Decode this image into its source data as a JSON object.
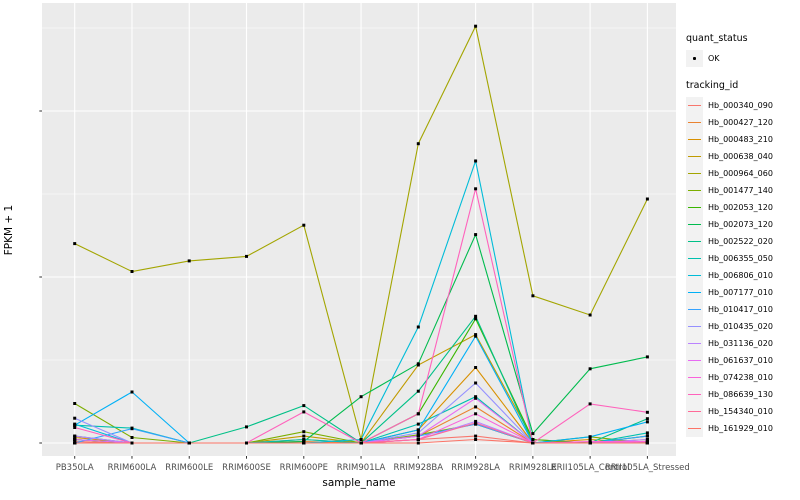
{
  "legend": {
    "quant_status_title": "quant_status",
    "ok_label": "OK",
    "tracking_id_title": "tracking_id"
  },
  "style": {
    "panel_bg": "#EBEBEB",
    "grid_color": "#FFFFFF",
    "legend_key_bg": "#F2F2F2",
    "tick_label_color": "#4D4D4D",
    "marker_color": "#000000",
    "axis_tick_color": "#333333"
  },
  "chart_data": {
    "type": "line",
    "title": "",
    "xlabel": "sample_name",
    "ylabel": "FPKM + 1",
    "y_scale": "log10",
    "y_ticks": [
      "1",
      "10",
      "100"
    ],
    "y_tick_values": [
      1,
      10,
      100
    ],
    "y_minor_gridlines": [
      3.1623,
      31.623,
      316.23
    ],
    "ylim": [
      0.84,
      450
    ],
    "grid": "on",
    "legend_position": "right",
    "point_legend": {
      "title": "quant_status",
      "label": "OK",
      "shape": "small-black-point"
    },
    "categories": [
      "PB350LA",
      "RRIM600LA",
      "RRIM600LE",
      "RRIM600SE",
      "RRIM600PE",
      "RRIM901LA",
      "RRIM928BA",
      "RRIM928LA",
      "RRIM928LE",
      "RRII105LA_Control",
      "RRII105LA_Stressed"
    ],
    "series": [
      {
        "name": "Hb_000340_090",
        "color": "#F8766D",
        "values": [
          1.02,
          1.0,
          1.0,
          1.0,
          1.0,
          1.0,
          1.05,
          1.1,
          1.0,
          1.0,
          1.0
        ]
      },
      {
        "name": "Hb_000427_120",
        "color": "#EA8331",
        "values": [
          1.05,
          1.0,
          1.0,
          1.0,
          1.02,
          1.0,
          1.1,
          1.65,
          1.0,
          1.0,
          1.02
        ]
      },
      {
        "name": "Hb_000483_210",
        "color": "#D89000",
        "values": [
          1.08,
          1.0,
          1.0,
          1.0,
          1.05,
          1.0,
          1.2,
          2.85,
          1.0,
          1.05,
          1.0
        ]
      },
      {
        "name": "Hb_000638_040",
        "color": "#C09B00",
        "values": [
          1.05,
          1.0,
          1.0,
          1.0,
          1.1,
          1.0,
          2.95,
          4.5,
          1.05,
          1.0,
          1.05
        ]
      },
      {
        "name": "Hb_000964_060",
        "color": "#A3A500",
        "values": [
          15.9,
          10.8,
          12.5,
          13.3,
          20.5,
          1.05,
          63.5,
          324.0,
          7.7,
          5.9,
          29.5
        ]
      },
      {
        "name": "Hb_001477_140",
        "color": "#7CAE00",
        "values": [
          1.73,
          1.08,
          1.0,
          1.0,
          1.17,
          1.0,
          1.12,
          1.3,
          1.0,
          1.09,
          1.0
        ]
      },
      {
        "name": "Hb_002053_120",
        "color": "#39B600",
        "values": [
          1.0,
          1.0,
          1.0,
          1.0,
          1.0,
          1.0,
          1.5,
          5.6,
          1.05,
          1.0,
          1.1
        ]
      },
      {
        "name": "Hb_002073_120",
        "color": "#00BB4E",
        "values": [
          1.1,
          1.0,
          1.0,
          1.0,
          1.02,
          1.9,
          3.0,
          18.0,
          1.14,
          2.8,
          3.3
        ]
      },
      {
        "name": "Hb_002522_020",
        "color": "#00C087",
        "values": [
          1.05,
          1.0,
          1.0,
          1.25,
          1.68,
          1.0,
          2.05,
          5.8,
          1.0,
          1.0,
          1.4
        ]
      },
      {
        "name": "Hb_006355_050",
        "color": "#00C0AF",
        "values": [
          1.28,
          1.23,
          1.0,
          1.0,
          1.05,
          1.0,
          1.3,
          1.9,
          1.0,
          1.0,
          1.15
        ]
      },
      {
        "name": "Hb_006806_010",
        "color": "#00BCD8",
        "values": [
          1.3,
          1.0,
          1.0,
          1.0,
          1.0,
          1.05,
          5.0,
          50.0,
          1.0,
          1.0,
          1.0
        ]
      },
      {
        "name": "Hb_007177_010",
        "color": "#00B0F6",
        "values": [
          1.28,
          2.03,
          1.0,
          1.0,
          1.0,
          1.0,
          1.2,
          4.4,
          1.0,
          1.09,
          1.34
        ]
      },
      {
        "name": "Hb_010417_010",
        "color": "#35A2FF",
        "values": [
          1.0,
          1.22,
          1.0,
          1.0,
          1.0,
          1.0,
          1.1,
          1.3,
          1.0,
          1.0,
          1.1
        ]
      },
      {
        "name": "Hb_010435_020",
        "color": "#9590FF",
        "values": [
          1.41,
          1.0,
          1.0,
          1.0,
          1.0,
          1.0,
          1.15,
          2.3,
          1.0,
          1.0,
          1.0
        ]
      },
      {
        "name": "Hb_031136_020",
        "color": "#BB83FF",
        "values": [
          1.1,
          1.0,
          1.0,
          1.0,
          1.0,
          1.0,
          1.05,
          1.35,
          1.0,
          1.0,
          1.05
        ]
      },
      {
        "name": "Hb_061637_010",
        "color": "#E76BF3",
        "values": [
          1.05,
          1.0,
          1.0,
          1.0,
          1.0,
          1.0,
          1.1,
          1.86,
          1.0,
          1.0,
          1.02
        ]
      },
      {
        "name": "Hb_074238_010",
        "color": "#FA62DB",
        "values": [
          1.0,
          1.0,
          1.0,
          1.0,
          1.0,
          1.0,
          1.05,
          1.5,
          1.0,
          1.02,
          1.02
        ]
      },
      {
        "name": "Hb_086639_130",
        "color": "#FF62BC",
        "values": [
          1.24,
          1.0,
          1.0,
          1.0,
          1.54,
          1.0,
          1.5,
          34.0,
          1.0,
          1.72,
          1.53
        ]
      },
      {
        "name": "Hb_154340_010",
        "color": "#FF6A98",
        "values": [
          1.0,
          1.0,
          1.0,
          1.0,
          1.0,
          1.0,
          1.05,
          1.32,
          1.0,
          1.0,
          1.0
        ]
      },
      {
        "name": "Hb_161929_010",
        "color": "#FC7467",
        "values": [
          1.0,
          1.0,
          1.0,
          1.0,
          1.0,
          1.0,
          1.0,
          1.05,
          1.0,
          1.0,
          1.0
        ]
      }
    ]
  }
}
